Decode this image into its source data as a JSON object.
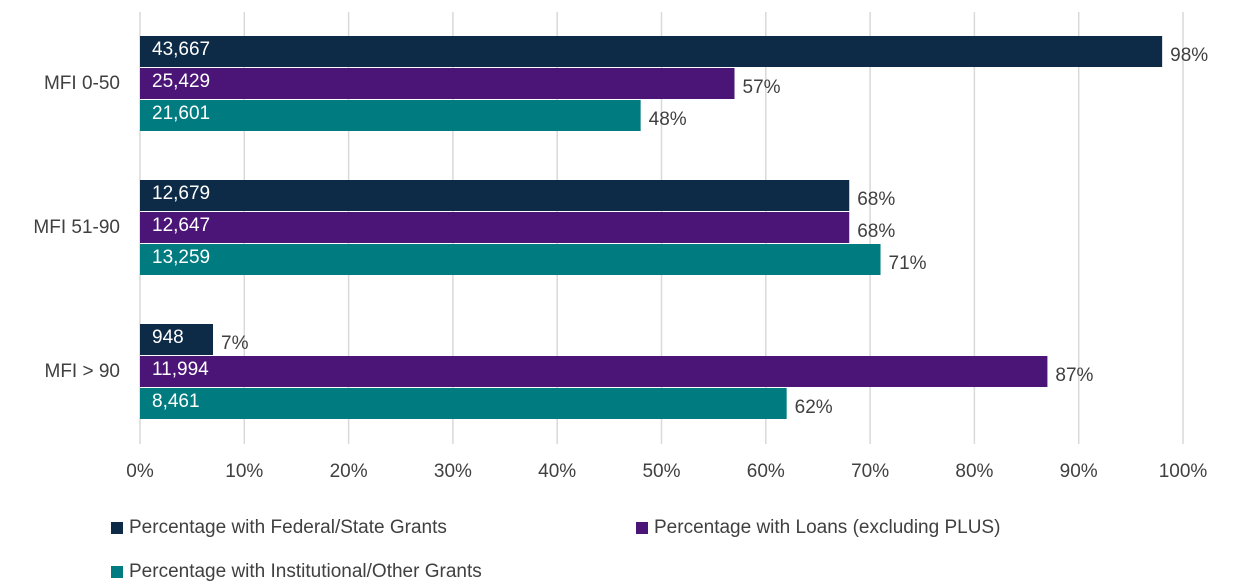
{
  "chart_data": {
    "type": "bar",
    "orientation": "horizontal",
    "categories": [
      "MFI 0-50",
      "MFI 51-90",
      "MFI > 90"
    ],
    "series": [
      {
        "name": "Percentage with Federal/State Grants",
        "color": "#0d2a47",
        "values": [
          98,
          68,
          7
        ],
        "value_labels": [
          "98%",
          "68%",
          "7%"
        ],
        "counts": [
          43667,
          12679,
          948
        ],
        "count_labels": [
          "43,667",
          "12,679",
          "948"
        ]
      },
      {
        "name": "Percentage with Loans (excluding PLUS)",
        "color": "#4b1577",
        "values": [
          57,
          68,
          87
        ],
        "value_labels": [
          "57%",
          "68%",
          "87%"
        ],
        "counts": [
          25429,
          12647,
          11994
        ],
        "count_labels": [
          "25,429",
          "12,647",
          "11,994"
        ]
      },
      {
        "name": "Percentage with Institutional/Other Grants",
        "color": "#007b80",
        "values": [
          48,
          71,
          62
        ],
        "value_labels": [
          "48%",
          "71%",
          "62%"
        ],
        "counts": [
          21601,
          13259,
          8461
        ],
        "count_labels": [
          "21,601",
          "13,259",
          "8,461"
        ]
      }
    ],
    "xlim": [
      0,
      100
    ],
    "xticks": [
      {
        "value": 0,
        "label": "0%"
      },
      {
        "value": 10,
        "label": "10%"
      },
      {
        "value": 20,
        "label": "20%"
      },
      {
        "value": 30,
        "label": "30%"
      },
      {
        "value": 40,
        "label": "40%"
      },
      {
        "value": 50,
        "label": "50%"
      },
      {
        "value": 60,
        "label": "60%"
      },
      {
        "value": 70,
        "label": "70%"
      },
      {
        "value": 80,
        "label": "80%"
      },
      {
        "value": 90,
        "label": "90%"
      },
      {
        "value": 100,
        "label": "100%"
      }
    ],
    "grid": true,
    "legend": "bottom"
  }
}
